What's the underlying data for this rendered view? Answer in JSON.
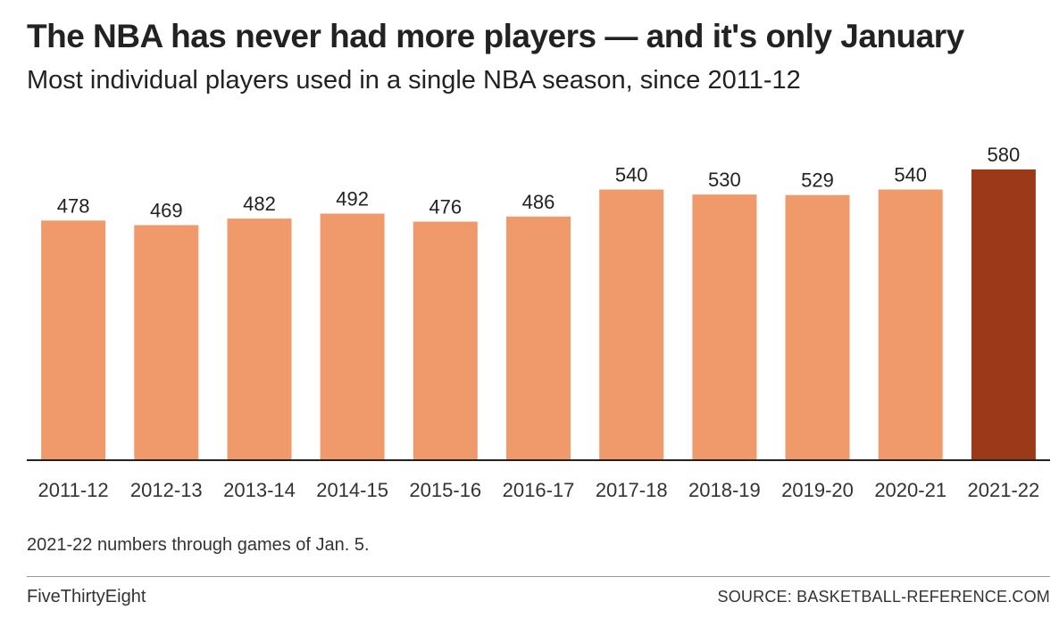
{
  "header": {
    "title": "The NBA has never had more players — and it's only January",
    "subtitle": "Most individual players used in a single NBA season, since 2011-12"
  },
  "footer": {
    "note": "2021-22 numbers through games of Jan. 5.",
    "brand": "FiveThirtyEight",
    "source": "SOURCE: BASKETBALL-REFERENCE.COM"
  },
  "colors": {
    "bar": "#F09A6C",
    "highlight_bar": "#9B3918",
    "baseline": "#222222",
    "label": "#222222"
  },
  "chart_data": {
    "type": "bar",
    "title": "The NBA has never had more players — and it's only January",
    "subtitle": "Most individual players used in a single NBA season, since 2011-12",
    "xlabel": "",
    "ylabel": "",
    "categories": [
      "2011-12",
      "2012-13",
      "2013-14",
      "2014-15",
      "2015-16",
      "2016-17",
      "2017-18",
      "2018-19",
      "2019-20",
      "2020-21",
      "2021-22"
    ],
    "values": [
      478,
      469,
      482,
      492,
      476,
      486,
      540,
      530,
      529,
      540,
      580
    ],
    "highlight_category": "2021-22",
    "ylim": [
      0,
      580
    ],
    "data_labels": true,
    "grid": false,
    "legend": "none"
  }
}
